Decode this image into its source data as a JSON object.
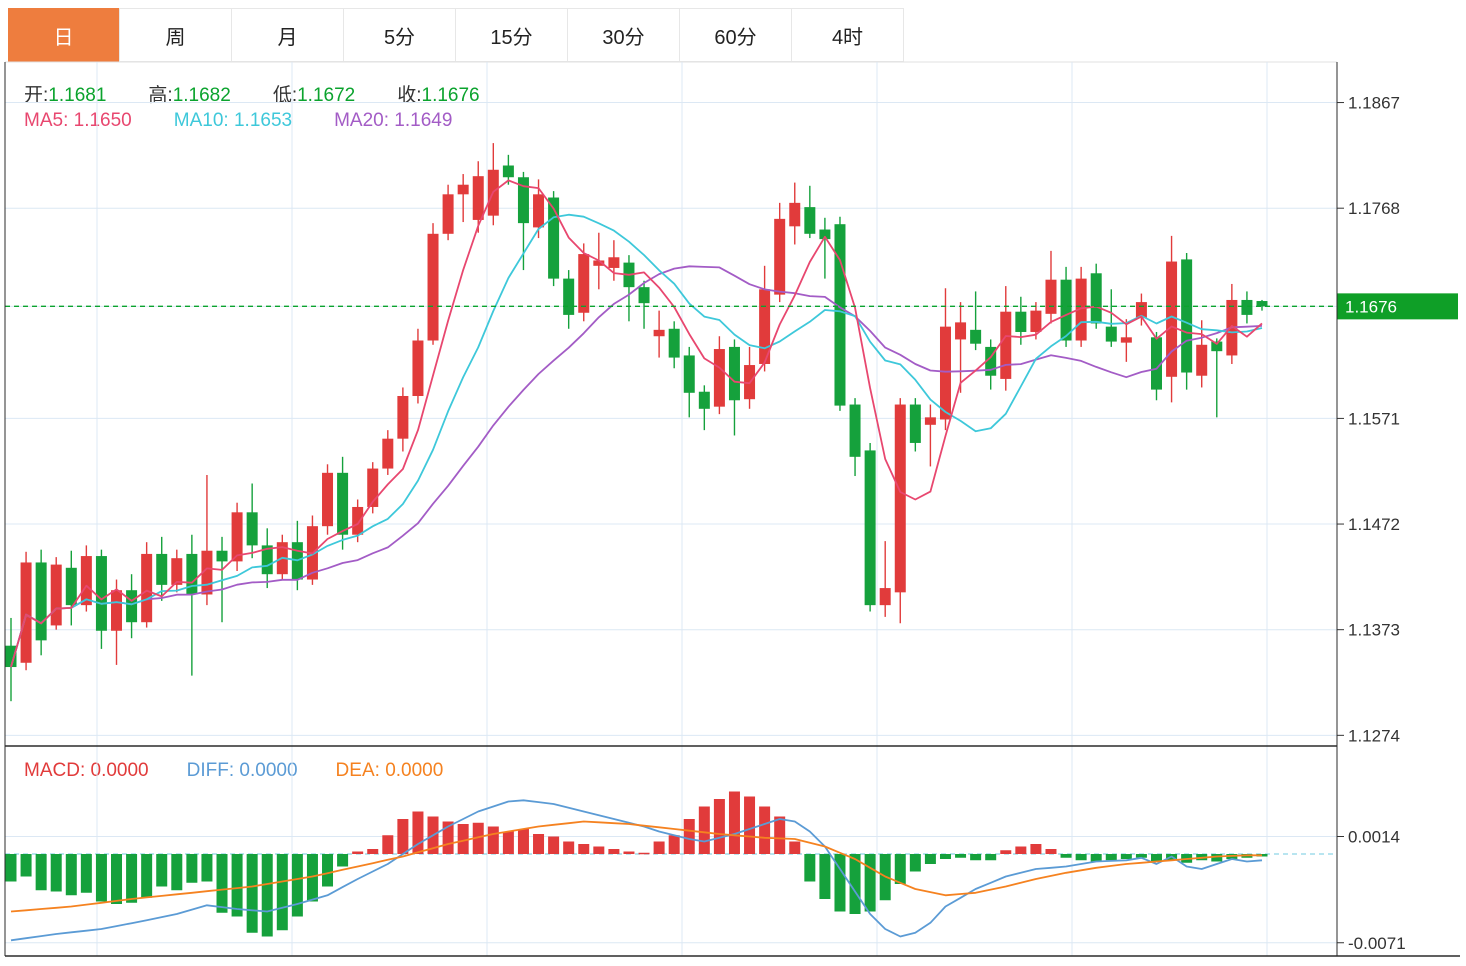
{
  "tabs": [
    {
      "label": "日",
      "active": true
    },
    {
      "label": "周",
      "active": false
    },
    {
      "label": "月",
      "active": false
    },
    {
      "label": "5分",
      "active": false
    },
    {
      "label": "15分",
      "active": false
    },
    {
      "label": "30分",
      "active": false
    },
    {
      "label": "60分",
      "active": false
    },
    {
      "label": "4时",
      "active": false
    }
  ],
  "legend": {
    "ohlc": [
      {
        "label": "开:",
        "value": "1.1681"
      },
      {
        "label": "高:",
        "value": "1.1682"
      },
      {
        "label": "低:",
        "value": "1.1672"
      },
      {
        "label": "收:",
        "value": "1.1676"
      }
    ],
    "ma": [
      {
        "label": "MA5:",
        "value": "1.1650",
        "color": "#e8476f"
      },
      {
        "label": "MA10:",
        "value": "1.1653",
        "color": "#3ec8da"
      },
      {
        "label": "MA20:",
        "value": "1.1649",
        "color": "#a35cc6"
      }
    ],
    "macd": [
      {
        "label": "MACD:",
        "value": "0.0000",
        "color": "#e13b3b"
      },
      {
        "label": "DIFF:",
        "value": "0.0000",
        "color": "#5b9bd5"
      },
      {
        "label": "DEA:",
        "value": "0.0000",
        "color": "#f58220"
      }
    ]
  },
  "colors": {
    "up": "#e13b3b",
    "down": "#15a13c",
    "ma5": "#e8476f",
    "ma10": "#3ec8da",
    "ma20": "#a35cc6",
    "diff": "#5b9bd5",
    "dea": "#f58220",
    "grid": "#dce8f4",
    "axis_text": "#333333",
    "border_dark": "#2b2b2b",
    "border_light": "#e0e0e0",
    "tab_active": "#ee7d3e",
    "price_tag_bg": "#0f9f27",
    "dashed_price": "#0ba32e",
    "macd_zero_dash": "#8ed5e8"
  },
  "price_axis": {
    "ticks": [
      {
        "label": "1.1867",
        "price": 1.1867
      },
      {
        "label": "1.1768",
        "price": 1.1768
      },
      {
        "label": "1.1571",
        "price": 1.1571
      },
      {
        "label": "1.1472",
        "price": 1.1472
      },
      {
        "label": "1.1373",
        "price": 1.1373
      },
      {
        "label": "1.1274",
        "price": 1.1274
      }
    ],
    "current": {
      "label": "1.1676",
      "price": 1.1676
    }
  },
  "macd_axis": {
    "ticks": [
      {
        "label": "0.0014",
        "value": 0.0014
      },
      {
        "label": "-0.0071",
        "value": -0.0071
      }
    ]
  },
  "chart_data": {
    "type": "candlestick",
    "title": "",
    "x_count": 84,
    "panels": [
      {
        "name": "price",
        "type": "candlestick",
        "ylim": [
          1.1264,
          1.1905
        ],
        "yticks": [
          1.1867,
          1.1768,
          1.1676,
          1.1571,
          1.1472,
          1.1373,
          1.1274
        ],
        "current_price": 1.1676,
        "grid": true,
        "overlays": [
          {
            "name": "MA5",
            "period": 5
          },
          {
            "name": "MA10",
            "period": 10
          },
          {
            "name": "MA20",
            "period": 20
          }
        ],
        "candles": [
          [
            1.1358,
            1.1384,
            1.1306,
            1.1338
          ],
          [
            1.1342,
            1.1446,
            1.1335,
            1.1436
          ],
          [
            1.1436,
            1.1448,
            1.1349,
            1.1363
          ],
          [
            1.1377,
            1.1441,
            1.1373,
            1.1434
          ],
          [
            1.1431,
            1.1447,
            1.1377,
            1.1396
          ],
          [
            1.1396,
            1.1452,
            1.139,
            1.1442
          ],
          [
            1.1442,
            1.1448,
            1.1355,
            1.1372
          ],
          [
            1.1372,
            1.142,
            1.134,
            1.141
          ],
          [
            1.141,
            1.1425,
            1.1365,
            1.138
          ],
          [
            1.138,
            1.1455,
            1.1375,
            1.1444
          ],
          [
            1.1444,
            1.146,
            1.14,
            1.1415
          ],
          [
            1.1415,
            1.1448,
            1.1408,
            1.144
          ],
          [
            1.1444,
            1.1462,
            1.133,
            1.1406
          ],
          [
            1.1406,
            1.1518,
            1.1396,
            1.1447
          ],
          [
            1.1447,
            1.146,
            1.138,
            1.1437
          ],
          [
            1.1437,
            1.1492,
            1.1428,
            1.1483
          ],
          [
            1.1483,
            1.151,
            1.144,
            1.1452
          ],
          [
            1.1452,
            1.1468,
            1.1412,
            1.1425
          ],
          [
            1.1425,
            1.1462,
            1.142,
            1.1455
          ],
          [
            1.1455,
            1.1475,
            1.141,
            1.142
          ],
          [
            1.142,
            1.148,
            1.1415,
            1.147
          ],
          [
            1.147,
            1.1528,
            1.1462,
            1.152
          ],
          [
            1.152,
            1.1535,
            1.1448,
            1.1462
          ],
          [
            1.1462,
            1.1495,
            1.1455,
            1.1488
          ],
          [
            1.1488,
            1.153,
            1.1482,
            1.1524
          ],
          [
            1.1524,
            1.156,
            1.1518,
            1.1552
          ],
          [
            1.1552,
            1.16,
            1.154,
            1.1592
          ],
          [
            1.1592,
            1.1655,
            1.1585,
            1.1644
          ],
          [
            1.1644,
            1.1754,
            1.164,
            1.1744
          ],
          [
            1.1744,
            1.179,
            1.1738,
            1.1781
          ],
          [
            1.1781,
            1.18,
            1.1755,
            1.179
          ],
          [
            1.1757,
            1.1812,
            1.1745,
            1.1798
          ],
          [
            1.1761,
            1.1829,
            1.1752,
            1.1804
          ],
          [
            1.1808,
            1.1818,
            1.179,
            1.1797
          ],
          [
            1.1797,
            1.1802,
            1.171,
            1.1754
          ],
          [
            1.175,
            1.1795,
            1.174,
            1.1781
          ],
          [
            1.1778,
            1.1784,
            1.1695,
            1.1702
          ],
          [
            1.1702,
            1.171,
            1.1655,
            1.1668
          ],
          [
            1.167,
            1.1735,
            1.1662,
            1.1725
          ],
          [
            1.1714,
            1.1745,
            1.1692,
            1.1719
          ],
          [
            1.1712,
            1.1738,
            1.17,
            1.1722
          ],
          [
            1.1717,
            1.1724,
            1.1662,
            1.1694
          ],
          [
            1.1694,
            1.17,
            1.1655,
            1.1679
          ],
          [
            1.1648,
            1.1672,
            1.1628,
            1.1654
          ],
          [
            1.1655,
            1.1662,
            1.1618,
            1.1628
          ],
          [
            1.163,
            1.1638,
            1.1572,
            1.1595
          ],
          [
            1.1596,
            1.1602,
            1.156,
            1.158
          ],
          [
            1.1582,
            1.1648,
            1.1575,
            1.1636
          ],
          [
            1.1638,
            1.1645,
            1.1555,
            1.1588
          ],
          [
            1.1589,
            1.1638,
            1.158,
            1.1621
          ],
          [
            1.1622,
            1.1714,
            1.1615,
            1.1692
          ],
          [
            1.1687,
            1.1773,
            1.168,
            1.1758
          ],
          [
            1.1751,
            1.1792,
            1.1734,
            1.1773
          ],
          [
            1.1769,
            1.1789,
            1.174,
            1.1744
          ],
          [
            1.1748,
            1.1759,
            1.1702,
            1.1739
          ],
          [
            1.1753,
            1.176,
            1.1578,
            1.1583
          ],
          [
            1.1584,
            1.159,
            1.1517,
            1.1535
          ],
          [
            1.1541,
            1.1548,
            1.139,
            1.1396
          ],
          [
            1.1396,
            1.1456,
            1.1385,
            1.1412
          ],
          [
            1.1408,
            1.159,
            1.1379,
            1.1584
          ],
          [
            1.1584,
            1.159,
            1.154,
            1.1548
          ],
          [
            1.1565,
            1.1584,
            1.1526,
            1.1572
          ],
          [
            1.157,
            1.1693,
            1.156,
            1.1657
          ],
          [
            1.1645,
            1.168,
            1.1595,
            1.1661
          ],
          [
            1.1654,
            1.169,
            1.1635,
            1.1641
          ],
          [
            1.1638,
            1.1645,
            1.1598,
            1.1611
          ],
          [
            1.1608,
            1.1695,
            1.1597,
            1.1671
          ],
          [
            1.1671,
            1.1685,
            1.164,
            1.1652
          ],
          [
            1.1652,
            1.168,
            1.1645,
            1.1672
          ],
          [
            1.1669,
            1.1728,
            1.166,
            1.1701
          ],
          [
            1.1701,
            1.1713,
            1.1638,
            1.1644
          ],
          [
            1.1644,
            1.1713,
            1.1638,
            1.1702
          ],
          [
            1.1707,
            1.1716,
            1.1655,
            1.166
          ],
          [
            1.1657,
            1.1692,
            1.1638,
            1.1643
          ],
          [
            1.1642,
            1.1664,
            1.1624,
            1.1647
          ],
          [
            1.1665,
            1.1688,
            1.1658,
            1.168
          ],
          [
            1.1647,
            1.1652,
            1.1588,
            1.1598
          ],
          [
            1.161,
            1.1742,
            1.1586,
            1.1718
          ],
          [
            1.172,
            1.1726,
            1.1598,
            1.1614
          ],
          [
            1.1611,
            1.1663,
            1.16,
            1.164
          ],
          [
            1.1643,
            1.1646,
            1.1572,
            1.1634
          ],
          [
            1.163,
            1.1697,
            1.1622,
            1.1682
          ],
          [
            1.1682,
            1.169,
            1.166,
            1.1668
          ],
          [
            1.1681,
            1.1682,
            1.1672,
            1.1676
          ]
        ]
      },
      {
        "name": "macd",
        "type": "bar+lines",
        "ylim": [
          -0.00816,
          0.00864
        ],
        "yticks": [
          0.0014,
          -0.0071
        ],
        "histogram_1e4": [
          -22,
          -18,
          -29,
          -30,
          -33,
          -31,
          -38,
          -40,
          -39,
          -35,
          -26,
          -29,
          -23,
          -22,
          -47,
          -50,
          -63,
          -66,
          -61,
          -50,
          -38,
          -26,
          -10,
          2,
          4,
          15,
          28,
          34,
          30,
          26,
          24,
          25,
          22,
          18,
          20,
          16,
          14,
          10,
          8,
          6,
          4,
          2,
          1,
          10,
          15,
          28,
          38,
          44,
          50,
          46,
          38,
          30,
          10,
          -22,
          -36,
          -46,
          -48,
          -46,
          -37,
          -24,
          -14,
          -8,
          -4,
          -3,
          -5,
          -5,
          3,
          6,
          8,
          4,
          -3,
          -5,
          -6,
          -5,
          -4,
          -3,
          -6,
          -5,
          -7,
          -5,
          -6,
          -4,
          -3,
          -2
        ],
        "diff_points": [
          [
            0,
            -0.0069
          ],
          [
            3,
            -0.0064
          ],
          [
            6,
            -0.006
          ],
          [
            9,
            -0.0053
          ],
          [
            11,
            -0.0048
          ],
          [
            13,
            -0.0041
          ],
          [
            15,
            -0.0044
          ],
          [
            17,
            -0.0046
          ],
          [
            19,
            -0.004
          ],
          [
            21,
            -0.0033
          ],
          [
            23,
            -0.002
          ],
          [
            25,
            -0.0008
          ],
          [
            27,
            0.0008
          ],
          [
            29,
            0.0022
          ],
          [
            31,
            0.0034
          ],
          [
            33,
            0.0042
          ],
          [
            34,
            0.0043
          ],
          [
            36,
            0.004
          ],
          [
            38,
            0.0034
          ],
          [
            40,
            0.0028
          ],
          [
            42,
            0.0022
          ],
          [
            43,
            0.0018
          ],
          [
            45,
            0.0012
          ],
          [
            46,
            0.001
          ],
          [
            48,
            0.0016
          ],
          [
            50,
            0.0024
          ],
          [
            51,
            0.0028
          ],
          [
            52,
            0.0026
          ],
          [
            53,
            0.0018
          ],
          [
            54,
            0.0006
          ],
          [
            55,
            -0.0012
          ],
          [
            56,
            -0.003
          ],
          [
            57,
            -0.0048
          ],
          [
            58,
            -0.006
          ],
          [
            59,
            -0.0066
          ],
          [
            60,
            -0.0063
          ],
          [
            61,
            -0.0055
          ],
          [
            62,
            -0.0042
          ],
          [
            64,
            -0.0028
          ],
          [
            66,
            -0.0018
          ],
          [
            68,
            -0.0012
          ],
          [
            70,
            -0.001
          ],
          [
            72,
            -0.0006
          ],
          [
            74,
            -0.0005
          ],
          [
            75,
            -0.0003
          ],
          [
            76,
            -0.0008
          ],
          [
            77,
            -0.0002
          ],
          [
            78,
            -0.001
          ],
          [
            79,
            -0.0012
          ],
          [
            80,
            -0.0008
          ],
          [
            81,
            -0.0004
          ],
          [
            82,
            -0.0006
          ],
          [
            83,
            -0.0005
          ]
        ],
        "dea_points": [
          [
            0,
            -0.0046
          ],
          [
            4,
            -0.0042
          ],
          [
            8,
            -0.0036
          ],
          [
            12,
            -0.0031
          ],
          [
            16,
            -0.0026
          ],
          [
            20,
            -0.0018
          ],
          [
            23,
            -0.001
          ],
          [
            26,
            -0.0002
          ],
          [
            29,
            0.0008
          ],
          [
            32,
            0.0016
          ],
          [
            35,
            0.0022
          ],
          [
            38,
            0.0026
          ],
          [
            41,
            0.0024
          ],
          [
            44,
            0.002
          ],
          [
            47,
            0.0016
          ],
          [
            50,
            0.0013
          ],
          [
            52,
            0.0012
          ],
          [
            54,
            0.0006
          ],
          [
            56,
            -0.0004
          ],
          [
            58,
            -0.0018
          ],
          [
            60,
            -0.0028
          ],
          [
            62,
            -0.0033
          ],
          [
            64,
            -0.0031
          ],
          [
            66,
            -0.0026
          ],
          [
            68,
            -0.002
          ],
          [
            70,
            -0.0015
          ],
          [
            72,
            -0.0011
          ],
          [
            74,
            -0.0008
          ],
          [
            76,
            -0.0006
          ],
          [
            78,
            -0.0004
          ],
          [
            80,
            -0.0002
          ],
          [
            82,
            -0.0001
          ],
          [
            83,
            -0.0001
          ]
        ]
      }
    ]
  }
}
